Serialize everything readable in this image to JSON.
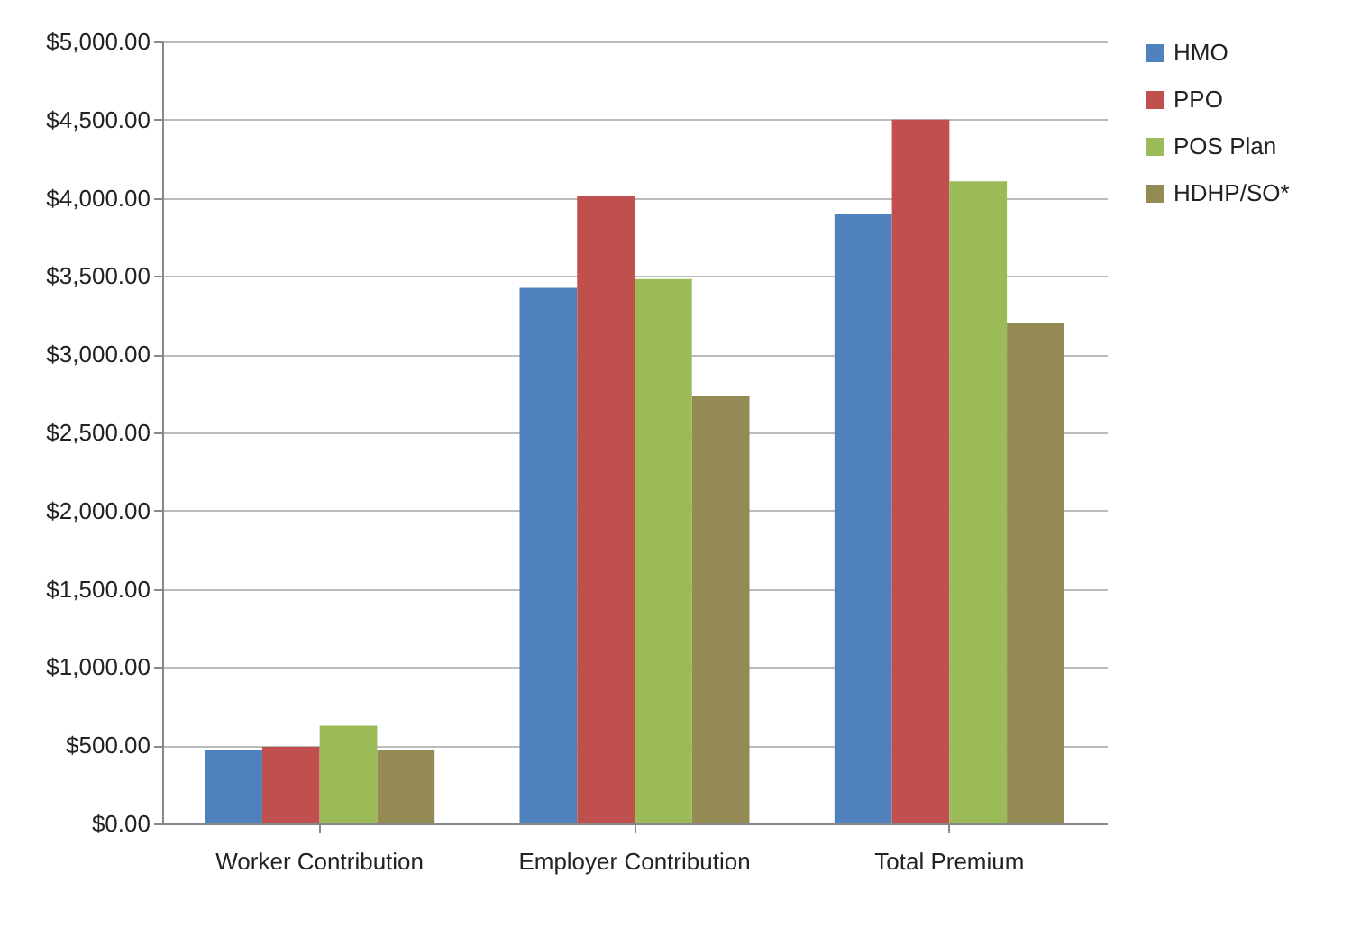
{
  "chart_data": {
    "type": "bar",
    "categories": [
      "Worker Contribution",
      "Employer Contribution",
      "Total Premium"
    ],
    "series": [
      {
        "name": "HMO",
        "color": "#4f81bd",
        "values": [
          470,
          3425,
          3895
        ]
      },
      {
        "name": "PPO",
        "color": "#c0504d",
        "values": [
          490,
          4010,
          4500
        ]
      },
      {
        "name": "POS Plan",
        "color": "#9bbb59",
        "values": [
          625,
          3480,
          4105
        ]
      },
      {
        "name": "HDHP/SO*",
        "color": "#948a54",
        "values": [
          470,
          2730,
          3200
        ]
      }
    ],
    "ylim": [
      0,
      5000
    ],
    "yticks": [
      {
        "value": 0,
        "label": "$0.00"
      },
      {
        "value": 500,
        "label": "$500.00"
      },
      {
        "value": 1000,
        "label": "$1,000.00"
      },
      {
        "value": 1500,
        "label": "$1,500.00"
      },
      {
        "value": 2000,
        "label": "$2,000.00"
      },
      {
        "value": 2500,
        "label": "$2,500.00"
      },
      {
        "value": 3000,
        "label": "$3,000.00"
      },
      {
        "value": 3500,
        "label": "$3,500.00"
      },
      {
        "value": 4000,
        "label": "$4,000.00"
      },
      {
        "value": 4500,
        "label": "$4,500.00"
      },
      {
        "value": 5000,
        "label": "$5,000.00"
      }
    ],
    "grid": "y",
    "legend": "right"
  }
}
